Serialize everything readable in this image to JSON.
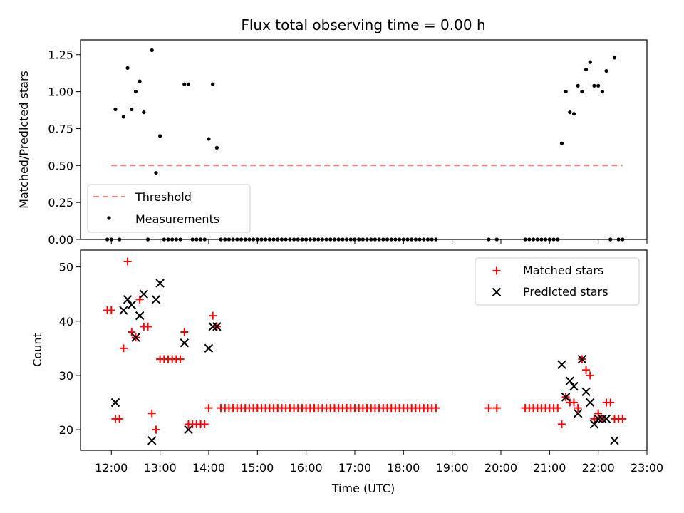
{
  "chart_data": [
    {
      "type": "scatter",
      "title": "Flux total observing time = 0.00 h",
      "xlabel": "",
      "ylabel": "Matched/Predicted stars",
      "xlim": [
        "11:22",
        "23:00"
      ],
      "ylim": [
        0,
        1.35
      ],
      "yticks": [
        "0.00",
        "0.25",
        "0.50",
        "0.75",
        "1.00",
        "1.25"
      ],
      "legend_position": "lower-left",
      "threshold": {
        "name": "Threshold",
        "y": 0.5,
        "x": [
          "12:00",
          "22:30"
        ],
        "color": "#ff7f7f",
        "style": "dashed"
      },
      "measurements": {
        "name": "Measurements",
        "color": "#000000",
        "points": [
          [
            "11:55",
            0
          ],
          [
            "12:00",
            0
          ],
          [
            "12:05",
            0.88
          ],
          [
            "12:10",
            0
          ],
          [
            "12:15",
            0.83
          ],
          [
            "12:20",
            1.16
          ],
          [
            "12:25",
            0.88
          ],
          [
            "12:30",
            1.0
          ],
          [
            "12:35",
            1.07
          ],
          [
            "12:40",
            0.86
          ],
          [
            "12:45",
            0
          ],
          [
            "12:50",
            1.28
          ],
          [
            "12:55",
            0.45
          ],
          [
            "13:00",
            0.7
          ],
          [
            "13:05",
            0
          ],
          [
            "13:10",
            0
          ],
          [
            "13:15",
            0
          ],
          [
            "13:20",
            0
          ],
          [
            "13:25",
            0
          ],
          [
            "13:30",
            1.05
          ],
          [
            "13:35",
            1.05
          ],
          [
            "13:40",
            0
          ],
          [
            "13:45",
            0
          ],
          [
            "13:50",
            0
          ],
          [
            "13:55",
            0
          ],
          [
            "14:00",
            0.68
          ],
          [
            "14:05",
            1.05
          ],
          [
            "14:10",
            0.62
          ],
          [
            "14:15",
            0
          ],
          [
            "14:20",
            0
          ],
          [
            "14:25",
            0
          ],
          [
            "14:30",
            0
          ],
          [
            "14:35",
            0
          ],
          [
            "14:40",
            0
          ],
          [
            "14:45",
            0
          ],
          [
            "14:50",
            0
          ],
          [
            "14:55",
            0
          ],
          [
            "15:00",
            0
          ],
          [
            "15:05",
            0
          ],
          [
            "15:10",
            0
          ],
          [
            "15:15",
            0
          ],
          [
            "15:20",
            0
          ],
          [
            "15:25",
            0
          ],
          [
            "15:30",
            0
          ],
          [
            "15:35",
            0
          ],
          [
            "15:40",
            0
          ],
          [
            "15:45",
            0
          ],
          [
            "15:50",
            0
          ],
          [
            "15:55",
            0
          ],
          [
            "16:00",
            0
          ],
          [
            "16:05",
            0
          ],
          [
            "16:10",
            0
          ],
          [
            "16:15",
            0
          ],
          [
            "16:20",
            0
          ],
          [
            "16:25",
            0
          ],
          [
            "16:30",
            0
          ],
          [
            "16:35",
            0
          ],
          [
            "16:40",
            0
          ],
          [
            "16:45",
            0
          ],
          [
            "16:50",
            0
          ],
          [
            "16:55",
            0
          ],
          [
            "17:00",
            0
          ],
          [
            "17:05",
            0
          ],
          [
            "17:10",
            0
          ],
          [
            "17:15",
            0
          ],
          [
            "17:20",
            0
          ],
          [
            "17:25",
            0
          ],
          [
            "17:30",
            0
          ],
          [
            "17:35",
            0
          ],
          [
            "17:40",
            0
          ],
          [
            "17:45",
            0
          ],
          [
            "17:50",
            0
          ],
          [
            "17:55",
            0
          ],
          [
            "18:00",
            0
          ],
          [
            "18:05",
            0
          ],
          [
            "18:10",
            0
          ],
          [
            "18:15",
            0
          ],
          [
            "18:20",
            0
          ],
          [
            "18:25",
            0
          ],
          [
            "18:30",
            0
          ],
          [
            "18:35",
            0
          ],
          [
            "18:40",
            0
          ],
          [
            "19:45",
            0
          ],
          [
            "19:55",
            0
          ],
          [
            "20:30",
            0
          ],
          [
            "20:35",
            0
          ],
          [
            "20:40",
            0
          ],
          [
            "20:45",
            0
          ],
          [
            "20:50",
            0
          ],
          [
            "20:55",
            0
          ],
          [
            "21:00",
            0
          ],
          [
            "21:05",
            0
          ],
          [
            "21:10",
            0
          ],
          [
            "21:15",
            0.65
          ],
          [
            "21:20",
            1.0
          ],
          [
            "21:25",
            0.86
          ],
          [
            "21:30",
            0.85
          ],
          [
            "21:35",
            1.04
          ],
          [
            "21:40",
            1.0
          ],
          [
            "21:45",
            1.15
          ],
          [
            "21:50",
            1.2
          ],
          [
            "21:55",
            1.04
          ],
          [
            "22:00",
            1.04
          ],
          [
            "22:05",
            1.0
          ],
          [
            "22:10",
            1.14
          ],
          [
            "22:15",
            0
          ],
          [
            "22:20",
            1.23
          ],
          [
            "22:25",
            0
          ],
          [
            "22:30",
            0
          ]
        ]
      }
    },
    {
      "type": "scatter",
      "xlabel": "Time (UTC)",
      "ylabel": "Count",
      "xlim": [
        "11:22",
        "23:00"
      ],
      "ylim": [
        16.2,
        53.1
      ],
      "yticks": [
        "20",
        "30",
        "40",
        "50"
      ],
      "xticks": [
        "12:00",
        "13:00",
        "14:00",
        "15:00",
        "16:00",
        "17:00",
        "18:00",
        "19:00",
        "20:00",
        "21:00",
        "22:00",
        "23:00"
      ],
      "legend_position": "upper-right",
      "series": [
        {
          "name": "Matched stars",
          "marker": "plus",
          "color": "#ff0000",
          "points": [
            [
              "11:55",
              42
            ],
            [
              "12:00",
              42
            ],
            [
              "12:05",
              22
            ],
            [
              "12:10",
              22
            ],
            [
              "12:15",
              35
            ],
            [
              "12:20",
              51
            ],
            [
              "12:25",
              38
            ],
            [
              "12:30",
              37
            ],
            [
              "12:35",
              44
            ],
            [
              "12:40",
              39
            ],
            [
              "12:45",
              39
            ],
            [
              "12:50",
              23
            ],
            [
              "12:55",
              20
            ],
            [
              "13:00",
              33
            ],
            [
              "13:05",
              33
            ],
            [
              "13:10",
              33
            ],
            [
              "13:15",
              33
            ],
            [
              "13:20",
              33
            ],
            [
              "13:25",
              33
            ],
            [
              "13:30",
              38
            ],
            [
              "13:35",
              21
            ],
            [
              "13:40",
              21
            ],
            [
              "13:45",
              21
            ],
            [
              "13:50",
              21
            ],
            [
              "13:55",
              21
            ],
            [
              "14:00",
              24
            ],
            [
              "14:05",
              41
            ],
            [
              "14:10",
              39
            ],
            [
              "14:15",
              24
            ],
            [
              "14:20",
              24
            ],
            [
              "14:25",
              24
            ],
            [
              "14:30",
              24
            ],
            [
              "14:35",
              24
            ],
            [
              "14:40",
              24
            ],
            [
              "14:45",
              24
            ],
            [
              "14:50",
              24
            ],
            [
              "14:55",
              24
            ],
            [
              "15:00",
              24
            ],
            [
              "15:05",
              24
            ],
            [
              "15:10",
              24
            ],
            [
              "15:15",
              24
            ],
            [
              "15:20",
              24
            ],
            [
              "15:25",
              24
            ],
            [
              "15:30",
              24
            ],
            [
              "15:35",
              24
            ],
            [
              "15:40",
              24
            ],
            [
              "15:45",
              24
            ],
            [
              "15:50",
              24
            ],
            [
              "15:55",
              24
            ],
            [
              "16:00",
              24
            ],
            [
              "16:05",
              24
            ],
            [
              "16:10",
              24
            ],
            [
              "16:15",
              24
            ],
            [
              "16:20",
              24
            ],
            [
              "16:25",
              24
            ],
            [
              "16:30",
              24
            ],
            [
              "16:35",
              24
            ],
            [
              "16:40",
              24
            ],
            [
              "16:45",
              24
            ],
            [
              "16:50",
              24
            ],
            [
              "16:55",
              24
            ],
            [
              "17:00",
              24
            ],
            [
              "17:05",
              24
            ],
            [
              "17:10",
              24
            ],
            [
              "17:15",
              24
            ],
            [
              "17:20",
              24
            ],
            [
              "17:25",
              24
            ],
            [
              "17:30",
              24
            ],
            [
              "17:35",
              24
            ],
            [
              "17:40",
              24
            ],
            [
              "17:45",
              24
            ],
            [
              "17:50",
              24
            ],
            [
              "17:55",
              24
            ],
            [
              "18:00",
              24
            ],
            [
              "18:05",
              24
            ],
            [
              "18:10",
              24
            ],
            [
              "18:15",
              24
            ],
            [
              "18:20",
              24
            ],
            [
              "18:25",
              24
            ],
            [
              "18:30",
              24
            ],
            [
              "18:35",
              24
            ],
            [
              "18:40",
              24
            ],
            [
              "19:45",
              24
            ],
            [
              "19:55",
              24
            ],
            [
              "20:30",
              24
            ],
            [
              "20:35",
              24
            ],
            [
              "20:40",
              24
            ],
            [
              "20:45",
              24
            ],
            [
              "20:50",
              24
            ],
            [
              "20:55",
              24
            ],
            [
              "21:00",
              24
            ],
            [
              "21:05",
              24
            ],
            [
              "21:10",
              24
            ],
            [
              "21:15",
              21
            ],
            [
              "21:20",
              26
            ],
            [
              "21:25",
              25
            ],
            [
              "21:30",
              25
            ],
            [
              "21:35",
              24
            ],
            [
              "21:40",
              33
            ],
            [
              "21:45",
              31
            ],
            [
              "21:50",
              30
            ],
            [
              "21:55",
              22
            ],
            [
              "22:00",
              23
            ],
            [
              "22:05",
              22
            ],
            [
              "22:10",
              25
            ],
            [
              "22:15",
              25
            ],
            [
              "22:20",
              22
            ],
            [
              "22:25",
              22
            ],
            [
              "22:30",
              22
            ]
          ]
        },
        {
          "name": "Predicted stars",
          "marker": "x",
          "color": "#000000",
          "points": [
            [
              "12:05",
              25
            ],
            [
              "12:15",
              42
            ],
            [
              "12:20",
              44
            ],
            [
              "12:25",
              43
            ],
            [
              "12:30",
              37
            ],
            [
              "12:35",
              41
            ],
            [
              "12:40",
              45
            ],
            [
              "12:50",
              18
            ],
            [
              "12:55",
              44
            ],
            [
              "13:00",
              47
            ],
            [
              "13:30",
              36
            ],
            [
              "13:35",
              20
            ],
            [
              "14:00",
              35
            ],
            [
              "14:05",
              39
            ],
            [
              "14:10",
              39
            ],
            [
              "21:15",
              32
            ],
            [
              "21:20",
              26
            ],
            [
              "21:25",
              29
            ],
            [
              "21:30",
              28
            ],
            [
              "21:35",
              23
            ],
            [
              "21:40",
              33
            ],
            [
              "21:45",
              27
            ],
            [
              "21:50",
              25
            ],
            [
              "21:55",
              21
            ],
            [
              "22:00",
              22
            ],
            [
              "22:05",
              22
            ],
            [
              "22:10",
              22
            ],
            [
              "22:20",
              18
            ]
          ]
        }
      ]
    }
  ]
}
